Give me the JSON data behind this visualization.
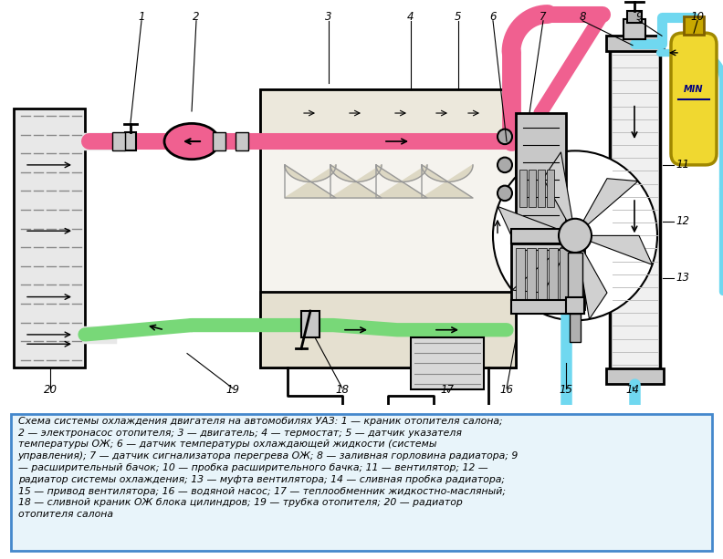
{
  "fig_width": 7.92,
  "fig_height": 6.13,
  "dpi": 100,
  "bg_color": "#ffffff",
  "pink": "#f06090",
  "green": "#78d878",
  "cyan": "#70d8f0",
  "yellow": "#f0d830",
  "yellow_dark": "#c8a800",
  "gray_light": "#e8e8e8",
  "gray_med": "#c8c8c8",
  "gray_dark": "#888888",
  "black": "#000000",
  "engine_fill": "#f5f3ee",
  "caption_bg": "#e8f4fa",
  "caption_border": "#4488cc",
  "caption_text": "Схема системы охлаждения двигателя на автомобилях УАЗ: 1 — краник отопителя салона;\n2 — электронасос отопителя; 3 — двигатель; 4 — термостат; 5 — датчик указателя\nтемпературы ОЖ; 6 — датчик температуры охлаждающей жидкости (системы\nуправления); 7 — датчик сигнализатора перегрева ОЖ; 8 — заливная горловина радиатора; 9\n— расширительный бачок; 10 — пробка расширительного бачка; 11 — вентилятор; 12 —\nрадиатор системы охлаждения; 13 — муфта вентилятора; 14 — сливная пробка радиатора;\n15 — привод вентилятора; 16 — водяной насос; 17 — теплообменник жидкостно-масляный;\n18 — сливной краник ОЖ блока цилиндров; 19 — трубка отопителя; 20 — радиатор\nотопителя салона"
}
